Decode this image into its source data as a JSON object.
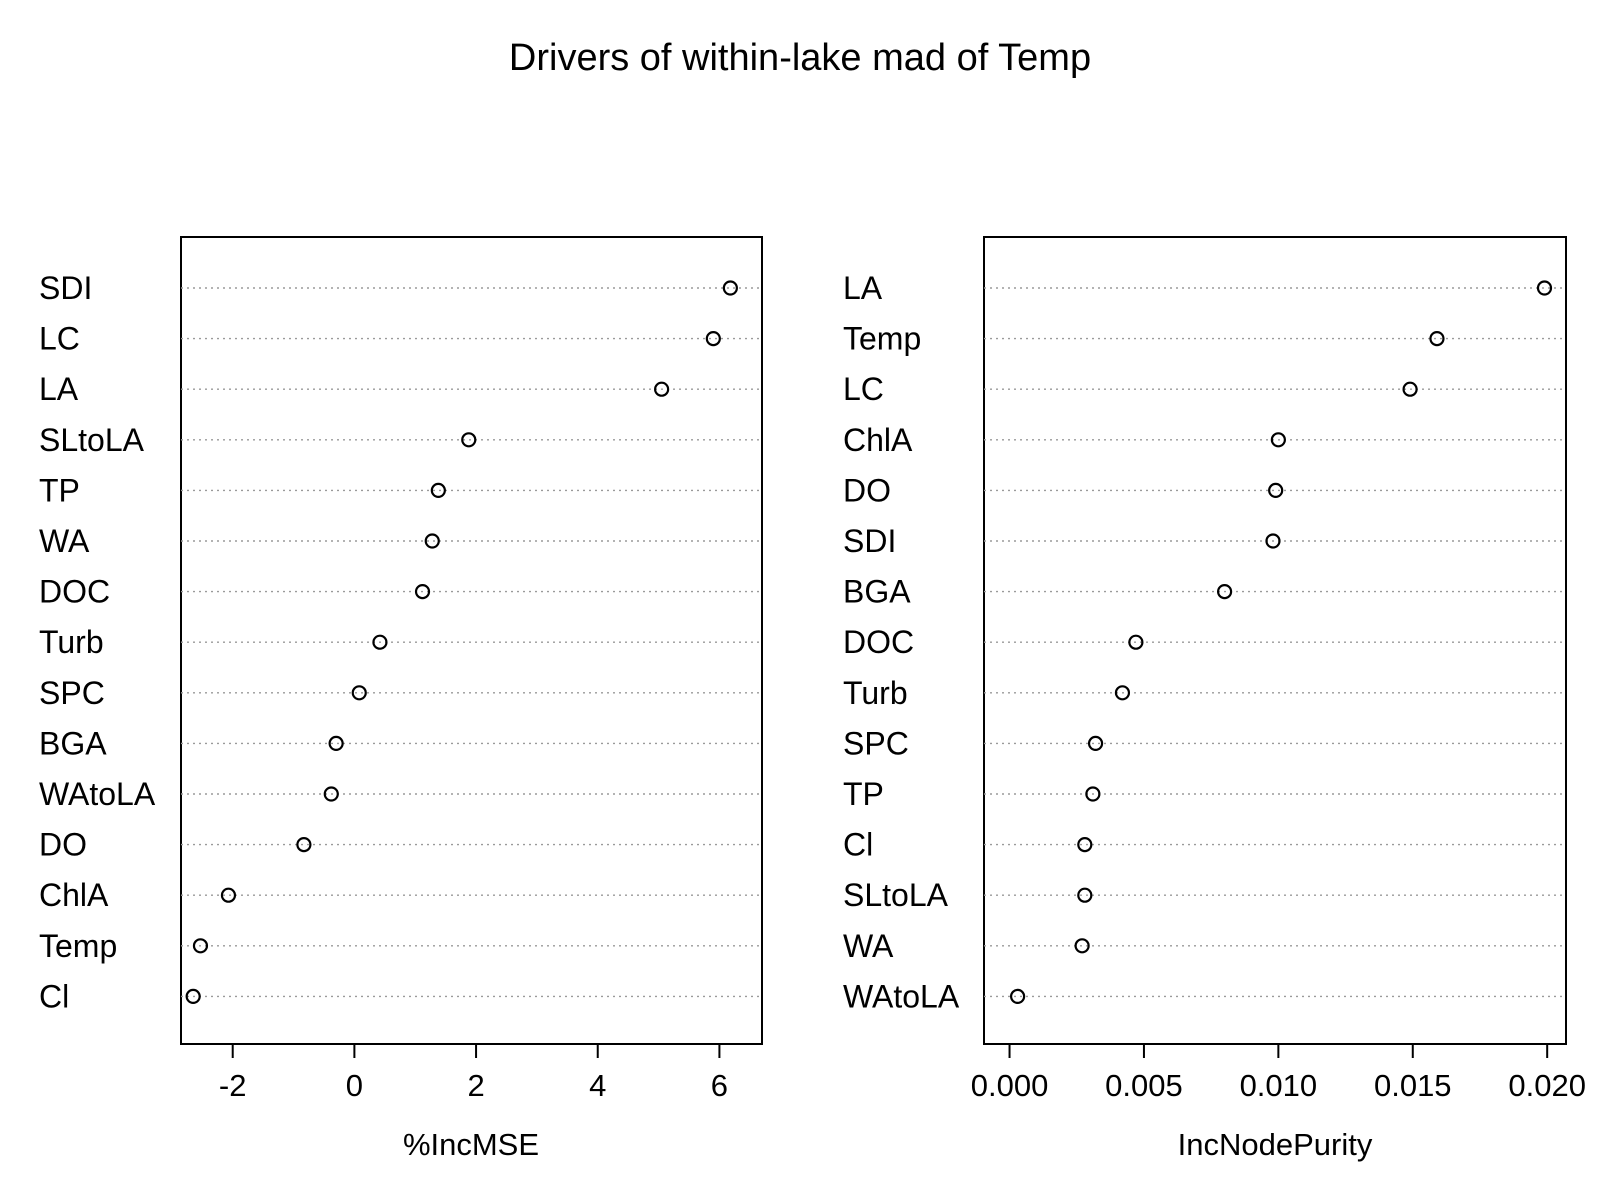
{
  "chart_data": [
    {
      "type": "scatter",
      "title": "Drivers of within-lake mad of Temp",
      "xlabel": "%IncMSE",
      "ylabel": "",
      "xlim": [
        -2.85,
        6.7
      ],
      "xticks": [
        -2,
        0,
        2,
        4,
        6
      ],
      "xtick_labels": [
        "-2",
        "0",
        "2",
        "4",
        "6"
      ],
      "labels": [
        "SDI",
        "LC",
        "LA",
        "SLtoLA",
        "TP",
        "WA",
        "DOC",
        "Turb",
        "SPC",
        "BGA",
        "WAtoLA",
        "DO",
        "ChlA",
        "Temp",
        "Cl"
      ],
      "values": [
        6.18,
        5.9,
        5.05,
        1.88,
        1.38,
        1.28,
        1.12,
        0.42,
        0.08,
        -0.3,
        -0.38,
        -0.83,
        -2.07,
        -2.53,
        -2.65
      ],
      "grid": "dotted-horizontal"
    },
    {
      "type": "scatter",
      "title": "",
      "xlabel": "IncNodePurity",
      "ylabel": "",
      "xlim": [
        -0.00095,
        0.0207
      ],
      "xticks": [
        0.0,
        0.005,
        0.01,
        0.015,
        0.02
      ],
      "xtick_labels": [
        "0.000",
        "0.005",
        "0.010",
        "0.015",
        "0.020"
      ],
      "labels": [
        "LA",
        "Temp",
        "LC",
        "ChlA",
        "DO",
        "SDI",
        "BGA",
        "DOC",
        "Turb",
        "SPC",
        "TP",
        "Cl",
        "SLtoLA",
        "WA",
        "WAtoLA"
      ],
      "values": [
        0.0199,
        0.0159,
        0.0149,
        0.01,
        0.0099,
        0.0098,
        0.008,
        0.0047,
        0.0042,
        0.0032,
        0.0031,
        0.0028,
        0.0028,
        0.0027,
        0.0003
      ],
      "grid": "dotted-horizontal"
    }
  ]
}
